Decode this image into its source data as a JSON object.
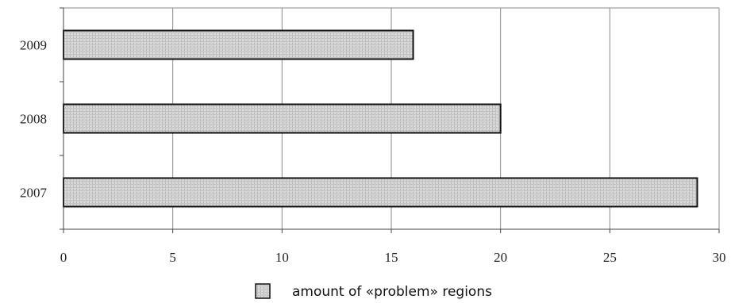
{
  "chart_data": {
    "type": "bar",
    "orientation": "horizontal",
    "categories": [
      "2009",
      "2008",
      "2007"
    ],
    "series": [
      {
        "name": "amount of «problem» regions",
        "values": [
          16,
          20,
          29
        ]
      }
    ],
    "xlim": [
      0,
      30
    ],
    "x_ticks": [
      "0",
      "5",
      "10",
      "15",
      "20",
      "25",
      "30"
    ],
    "grid": "vertical",
    "legend_position": "bottom-center",
    "bar_color": "#d0d0d0",
    "bar_stroke": "#111111",
    "grid_color": "#8a8a8a"
  }
}
